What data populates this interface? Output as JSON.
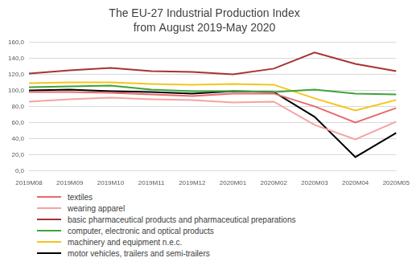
{
  "chart_data": {
    "type": "line",
    "title": [
      "The EU-27 Industrial Production Index",
      "from August 2019-May 2020"
    ],
    "categories": [
      "2019M08",
      "2019M09",
      "2019M10",
      "2019M11",
      "2019M12",
      "2020M01",
      "2020M02",
      "2020M03",
      "2020M04",
      "2020M05"
    ],
    "series": [
      {
        "name": "textiles",
        "color": "#e8696b",
        "values": [
          98,
          98,
          97,
          95,
          93,
          96,
          96,
          80,
          60,
          78
        ]
      },
      {
        "name": "wearing apparel",
        "color": "#f4a3a0",
        "values": [
          86,
          89,
          91,
          89,
          88,
          85,
          86,
          57,
          39,
          61
        ]
      },
      {
        "name": "basic pharmaceutical products and pharmaceutical preparations",
        "color": "#a83234",
        "values": [
          121,
          125,
          128,
          124,
          123,
          120,
          127,
          147,
          133,
          124
        ]
      },
      {
        "name": "computer, electronic and optical products",
        "color": "#3da33a",
        "values": [
          104,
          105,
          106,
          101,
          99,
          99,
          98,
          101,
          96,
          95
        ]
      },
      {
        "name": "machinery and equipment n.e.c.",
        "color": "#f5c518",
        "values": [
          109,
          110,
          110,
          108,
          107,
          108,
          107,
          90,
          75,
          88
        ]
      },
      {
        "name": "motor vehicles, trailers and semi-trailers",
        "color": "#000000",
        "values": [
          100,
          101,
          99,
          98,
          96,
          99,
          98,
          67,
          17,
          47
        ]
      }
    ],
    "ylim": [
      0,
      160
    ],
    "yticks": [
      {
        "value": 0,
        "label": "0,0"
      },
      {
        "value": 20,
        "label": "20,0"
      },
      {
        "value": 40,
        "label": "40,0"
      },
      {
        "value": 60,
        "label": "60,0"
      },
      {
        "value": 80,
        "label": "80,0"
      },
      {
        "value": 100,
        "label": "100,0"
      },
      {
        "value": 120,
        "label": "120,0"
      },
      {
        "value": 140,
        "label": "140,0"
      },
      {
        "value": 160,
        "label": "160,0"
      }
    ],
    "grid": true,
    "legend": "bottom"
  }
}
